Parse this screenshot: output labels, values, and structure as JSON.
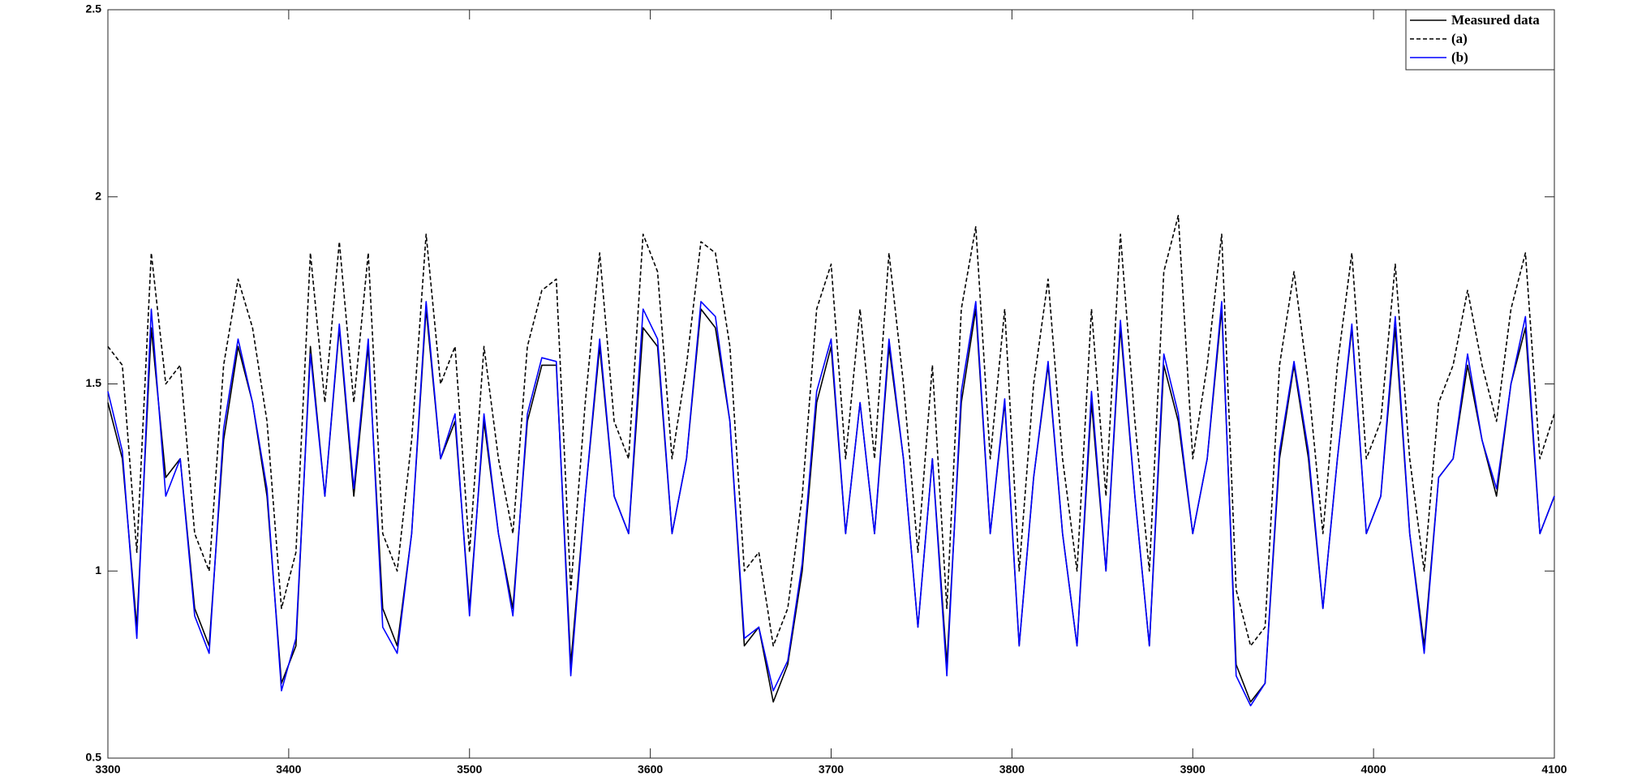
{
  "chart_data": {
    "type": "line",
    "x": [
      3300,
      3308,
      3316,
      3324,
      3332,
      3340,
      3348,
      3356,
      3364,
      3372,
      3380,
      3388,
      3396,
      3404,
      3412,
      3420,
      3428,
      3436,
      3444,
      3452,
      3460,
      3468,
      3476,
      3484,
      3492,
      3500,
      3508,
      3516,
      3524,
      3532,
      3540,
      3548,
      3556,
      3564,
      3572,
      3580,
      3588,
      3596,
      3604,
      3612,
      3620,
      3628,
      3636,
      3644,
      3652,
      3660,
      3668,
      3676,
      3684,
      3692,
      3700,
      3708,
      3716,
      3724,
      3732,
      3740,
      3748,
      3756,
      3764,
      3772,
      3780,
      3788,
      3796,
      3804,
      3812,
      3820,
      3828,
      3836,
      3844,
      3852,
      3860,
      3868,
      3876,
      3884,
      3892,
      3900,
      3908,
      3916,
      3924,
      3932,
      3940,
      3948,
      3956,
      3964,
      3972,
      3980,
      3988,
      3996,
      4004,
      4012,
      4020,
      4028,
      4036,
      4044,
      4052,
      4060,
      4068,
      4076,
      4084,
      4092,
      4100
    ],
    "series": [
      {
        "name": "Measured data",
        "color": "#000000",
        "dashed": false,
        "values": [
          1.45,
          1.3,
          0.85,
          1.65,
          1.25,
          1.3,
          0.9,
          0.8,
          1.35,
          1.6,
          1.45,
          1.2,
          0.7,
          0.8,
          1.6,
          1.2,
          1.65,
          1.2,
          1.6,
          0.9,
          0.8,
          1.1,
          1.7,
          1.3,
          1.4,
          0.9,
          1.4,
          1.1,
          0.9,
          1.4,
          1.55,
          1.55,
          0.75,
          1.2,
          1.6,
          1.2,
          1.1,
          1.65,
          1.6,
          1.1,
          1.3,
          1.7,
          1.65,
          1.4,
          0.8,
          0.85,
          0.65,
          0.75,
          1.0,
          1.45,
          1.6,
          1.1,
          1.45,
          1.1,
          1.6,
          1.3,
          0.85,
          1.3,
          0.75,
          1.45,
          1.7,
          1.1,
          1.45,
          0.8,
          1.25,
          1.55,
          1.1,
          0.8,
          1.45,
          1.0,
          1.65,
          1.2,
          0.8,
          1.55,
          1.4,
          1.1,
          1.3,
          1.7,
          0.75,
          0.65,
          0.7,
          1.3,
          1.55,
          1.3,
          0.9,
          1.3,
          1.65,
          1.1,
          1.2,
          1.65,
          1.1,
          0.8,
          1.25,
          1.3,
          1.55,
          1.35,
          1.2,
          1.5,
          1.65,
          1.1,
          1.2
        ]
      },
      {
        "name": "(a)",
        "color": "#000000",
        "dashed": true,
        "values": [
          1.6,
          1.55,
          1.05,
          1.85,
          1.5,
          1.55,
          1.1,
          1.0,
          1.55,
          1.78,
          1.65,
          1.4,
          0.9,
          1.05,
          1.85,
          1.45,
          1.88,
          1.45,
          1.85,
          1.1,
          1.0,
          1.35,
          1.9,
          1.5,
          1.6,
          1.05,
          1.6,
          1.3,
          1.1,
          1.6,
          1.75,
          1.78,
          0.95,
          1.45,
          1.85,
          1.4,
          1.3,
          1.9,
          1.8,
          1.3,
          1.55,
          1.88,
          1.85,
          1.6,
          1.0,
          1.05,
          0.8,
          0.9,
          1.2,
          1.7,
          1.82,
          1.3,
          1.7,
          1.3,
          1.85,
          1.5,
          1.05,
          1.55,
          0.9,
          1.7,
          1.92,
          1.3,
          1.7,
          1.0,
          1.5,
          1.78,
          1.3,
          1.0,
          1.7,
          1.2,
          1.9,
          1.4,
          1.0,
          1.8,
          1.95,
          1.3,
          1.55,
          1.9,
          0.95,
          0.8,
          0.85,
          1.55,
          1.8,
          1.5,
          1.1,
          1.55,
          1.85,
          1.3,
          1.4,
          1.82,
          1.3,
          1.0,
          1.45,
          1.55,
          1.75,
          1.55,
          1.4,
          1.7,
          1.85,
          1.3,
          1.42
        ]
      },
      {
        "name": "(b)",
        "color": "#0000ff",
        "dashed": false,
        "values": [
          1.48,
          1.32,
          0.82,
          1.7,
          1.2,
          1.3,
          0.88,
          0.78,
          1.38,
          1.62,
          1.45,
          1.22,
          0.68,
          0.82,
          1.58,
          1.2,
          1.66,
          1.22,
          1.62,
          0.85,
          0.78,
          1.1,
          1.72,
          1.3,
          1.42,
          0.88,
          1.42,
          1.1,
          0.88,
          1.42,
          1.57,
          1.56,
          0.72,
          1.2,
          1.62,
          1.2,
          1.1,
          1.7,
          1.62,
          1.1,
          1.3,
          1.72,
          1.68,
          1.4,
          0.82,
          0.85,
          0.68,
          0.76,
          1.02,
          1.48,
          1.62,
          1.1,
          1.45,
          1.1,
          1.62,
          1.3,
          0.85,
          1.3,
          0.72,
          1.48,
          1.72,
          1.1,
          1.46,
          0.8,
          1.25,
          1.56,
          1.1,
          0.8,
          1.48,
          1.0,
          1.67,
          1.2,
          0.8,
          1.58,
          1.42,
          1.1,
          1.3,
          1.72,
          0.72,
          0.64,
          0.7,
          1.32,
          1.56,
          1.32,
          0.9,
          1.3,
          1.66,
          1.1,
          1.2,
          1.68,
          1.1,
          0.78,
          1.25,
          1.3,
          1.58,
          1.35,
          1.22,
          1.5,
          1.68,
          1.1,
          1.2
        ]
      }
    ],
    "xlim": [
      3300,
      4100
    ],
    "xticks": [
      3300,
      3400,
      3500,
      3600,
      3700,
      3800,
      3900,
      4000,
      4100
    ],
    "ylim": [
      0.5,
      2.5
    ],
    "yticks": [
      0.5,
      1,
      1.5,
      2,
      2.5
    ],
    "grid": false,
    "legend": "upper right"
  }
}
